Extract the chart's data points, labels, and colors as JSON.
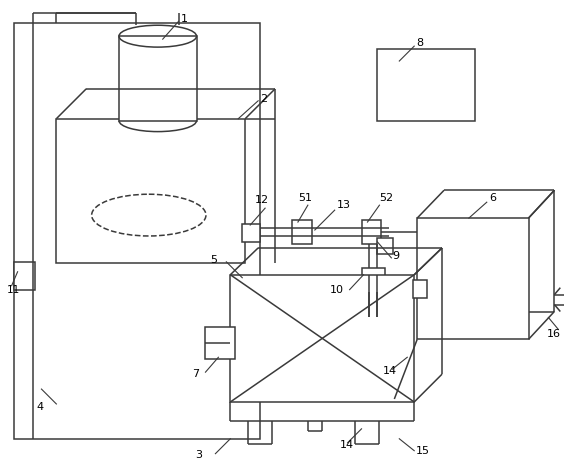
{
  "bg_color": "#ffffff",
  "line_color": "#3a3a3a",
  "line_width": 1.1,
  "fig_width": 5.66,
  "fig_height": 4.65,
  "dpi": 100
}
